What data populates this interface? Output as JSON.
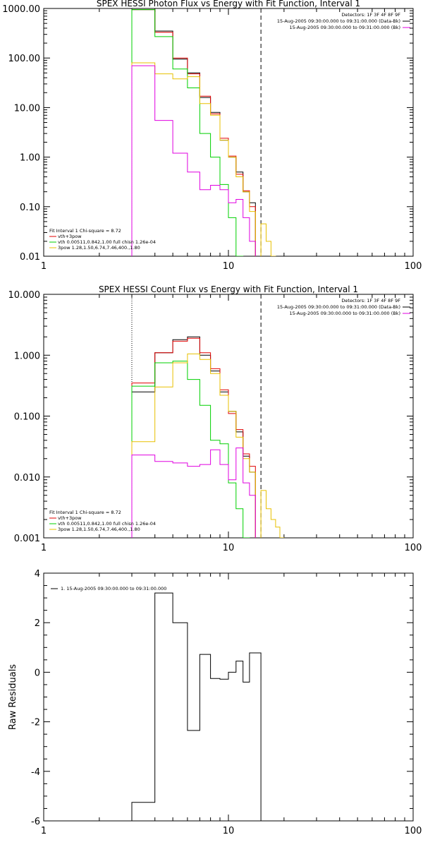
{
  "chart_data": [
    {
      "type": "line",
      "title": "SPEX HESSI Photon Flux vs Energy with Fit Function, Interval 1",
      "xlabel": "",
      "ylabel": "",
      "xscale": "log",
      "yscale": "log",
      "xlim": [
        1,
        100
      ],
      "ylim": [
        0.01,
        1000
      ],
      "grid": false,
      "x_tick_labels": [
        "1",
        "10",
        "100"
      ],
      "y_tick_labels": [
        "0.01",
        "0.10",
        "1.00",
        "10.00",
        "100.00",
        "1000.00"
      ],
      "x_edges": [
        3,
        4,
        5,
        6,
        7,
        8,
        9,
        10,
        11,
        12,
        13,
        14,
        15,
        16,
        17,
        18
      ],
      "dotted_line_x": 3,
      "dashed_line_x": 15,
      "legend_topright": [
        "Detectors: 1F 3F 4F 8F 9F",
        "15-Aug-2005 09:30:00.000 to 09:31:00.000 (Data-Bk)",
        "15-Aug-2005 09:30:00.000 to 09:31:00.000 (Bk)"
      ],
      "legend_bottomleft": [
        "Fit Interval 1    Chi-square = 8.72",
        "vth+3pow",
        "vth 0.00511,0.842,1.00  full chisn 1.26e-04",
        "3pow 1.28,1.50,6.74,7.46,400.,1.80"
      ],
      "series": [
        {
          "color": "#000000",
          "values": [
            950,
            350,
            95,
            50,
            16,
            8.0,
            2.2,
            1.0,
            0.5,
            0.2,
            0.12,
            null,
            null,
            null,
            null
          ]
        },
        {
          "color": "#e00000",
          "values": [
            950,
            330,
            100,
            48,
            17,
            7.5,
            2.4,
            1.05,
            0.45,
            0.21,
            0.1,
            null,
            null,
            null,
            null
          ]
        },
        {
          "color": "#00d000",
          "values": [
            950,
            270,
            60,
            25,
            3.0,
            1.0,
            0.28,
            0.06,
            0.01,
            null,
            null,
            null,
            null,
            null,
            null
          ]
        },
        {
          "color": "#e8c000",
          "values": [
            80,
            48,
            38,
            42,
            12,
            7.0,
            2.2,
            1.0,
            0.4,
            0.2,
            0.08,
            null,
            0.045,
            0.02,
            0.01
          ]
        },
        {
          "color": "#e000e0",
          "values": [
            70,
            5.5,
            1.2,
            0.5,
            0.22,
            0.27,
            0.22,
            0.12,
            0.14,
            0.06,
            0.02,
            null,
            null,
            null,
            null
          ]
        }
      ]
    },
    {
      "type": "line",
      "title": "SPEX HESSI Count Flux vs Energy with Fit Function, Interval 1",
      "xlabel": "",
      "ylabel": "",
      "xscale": "log",
      "yscale": "log",
      "xlim": [
        1,
        100
      ],
      "ylim": [
        0.001,
        10
      ],
      "grid": false,
      "x_tick_labels": [
        "1",
        "10",
        "100"
      ],
      "y_tick_labels": [
        "0.001",
        "0.010",
        "0.100",
        "1.000",
        "10.000"
      ],
      "x_edges": [
        3,
        4,
        5,
        6,
        7,
        8,
        9,
        10,
        11,
        12,
        13,
        14,
        15,
        16,
        17,
        18,
        19,
        20
      ],
      "dotted_line_x": 3,
      "dashed_line_x": 15,
      "legend_topright": [
        "Detectors: 1F 3F 4F 8F 9F",
        "15-Aug-2005 09:30:00.000 to 09:31:00.000 (Data-Bk)",
        "15-Aug-2005 09:30:00.000 to 09:31:00.000 (Bk)"
      ],
      "legend_bottomleft": [
        "Fit Interval 1    Chi-square = 8.72",
        "vth+3pow",
        "vth 0.00511,0.842,1.00  full chisn 1.26e-04",
        "3pow 1.28,1.50,6.74,7.46,400.,1.80"
      ],
      "series": [
        {
          "color": "#000000",
          "values": [
            0.25,
            1.1,
            1.8,
            2.0,
            1.0,
            0.55,
            0.25,
            0.12,
            0.055,
            0.022,
            0.012,
            null,
            null,
            null,
            null,
            null,
            null
          ]
        },
        {
          "color": "#e00000",
          "values": [
            0.35,
            1.1,
            1.7,
            1.9,
            1.1,
            0.6,
            0.27,
            0.11,
            0.06,
            0.024,
            0.015,
            null,
            null,
            null,
            null,
            null,
            null
          ]
        },
        {
          "color": "#00d000",
          "values": [
            0.31,
            0.75,
            0.8,
            0.4,
            0.15,
            0.04,
            0.035,
            0.008,
            0.003,
            0.001,
            null,
            null,
            null,
            null,
            null,
            null,
            null
          ]
        },
        {
          "color": "#e8c000",
          "values": [
            0.038,
            0.3,
            0.75,
            1.05,
            0.85,
            0.5,
            0.22,
            0.12,
            0.045,
            0.02,
            0.012,
            null,
            0.006,
            0.003,
            0.002,
            0.0015,
            0.001
          ]
        },
        {
          "color": "#e000e0",
          "values": [
            0.023,
            0.018,
            0.017,
            0.015,
            0.016,
            0.028,
            0.016,
            0.009,
            0.03,
            0.008,
            0.005,
            null,
            null,
            null,
            null,
            null,
            null
          ]
        }
      ]
    },
    {
      "type": "line",
      "title": "",
      "xlabel": "",
      "ylabel": "Raw Residuals",
      "xscale": "log",
      "yscale": "linear",
      "xlim": [
        1,
        100
      ],
      "ylim": [
        -6,
        4
      ],
      "grid": false,
      "x_tick_labels": [
        "1",
        "10",
        "100"
      ],
      "y_tick_labels": [
        "-6",
        "-4",
        "-2",
        "0",
        "2",
        "4"
      ],
      "x_edges": [
        3,
        4,
        5,
        6,
        7,
        8,
        9,
        10,
        11,
        12,
        13,
        14,
        15
      ],
      "legend_topleft": [
        "1. 15-Aug-2005 09:30:00.000 to 09:31:00.000"
      ],
      "series": [
        {
          "color": "#000000",
          "values": [
            -5.25,
            3.2,
            2.0,
            -2.35,
            0.72,
            -0.25,
            -0.28,
            0.0,
            0.45,
            -0.4,
            0.78,
            0.78
          ]
        }
      ]
    }
  ]
}
